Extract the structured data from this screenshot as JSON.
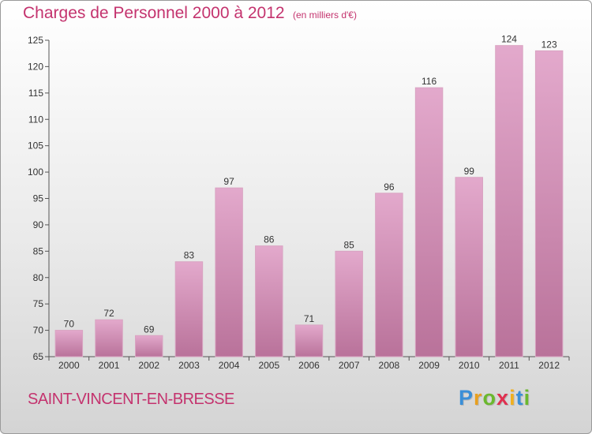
{
  "header": {
    "title": "Charges de Personnel 2000 à 2012",
    "subtitle": "(en milliers d'€)"
  },
  "footer": {
    "commune": "SAINT-VINCENT-EN-BRESSE",
    "logo_letters": [
      {
        "char": "P",
        "color": "#3a8fd8"
      },
      {
        "char": "r",
        "color": "#e8a020"
      },
      {
        "char": "o",
        "color": "#6bb82e"
      },
      {
        "char": "x",
        "color": "#e03050"
      },
      {
        "char": "i",
        "color": "#f0b020"
      },
      {
        "char": "t",
        "color": "#3a8fd8"
      },
      {
        "char": "i",
        "color": "#6bb82e"
      }
    ]
  },
  "colors": {
    "bar_light": "#e3a9cc",
    "bar_dark": "#b9729a",
    "text": "#333333",
    "accent": "#c4336e"
  },
  "chart_data": {
    "type": "bar",
    "categories": [
      "2000",
      "2001",
      "2002",
      "2003",
      "2004",
      "2005",
      "2006",
      "2007",
      "2008",
      "2009",
      "2010",
      "2011",
      "2012"
    ],
    "values": [
      70,
      72,
      69,
      83,
      97,
      86,
      71,
      85,
      96,
      116,
      99,
      124,
      123
    ],
    "title": "Charges de Personnel 2000 à 2012",
    "xlabel": "",
    "ylabel": "",
    "ylim": [
      65,
      125
    ],
    "yticks": [
      65,
      70,
      75,
      80,
      85,
      90,
      95,
      100,
      105,
      110,
      115,
      120,
      125
    ],
    "grid": false,
    "legend": "none"
  }
}
